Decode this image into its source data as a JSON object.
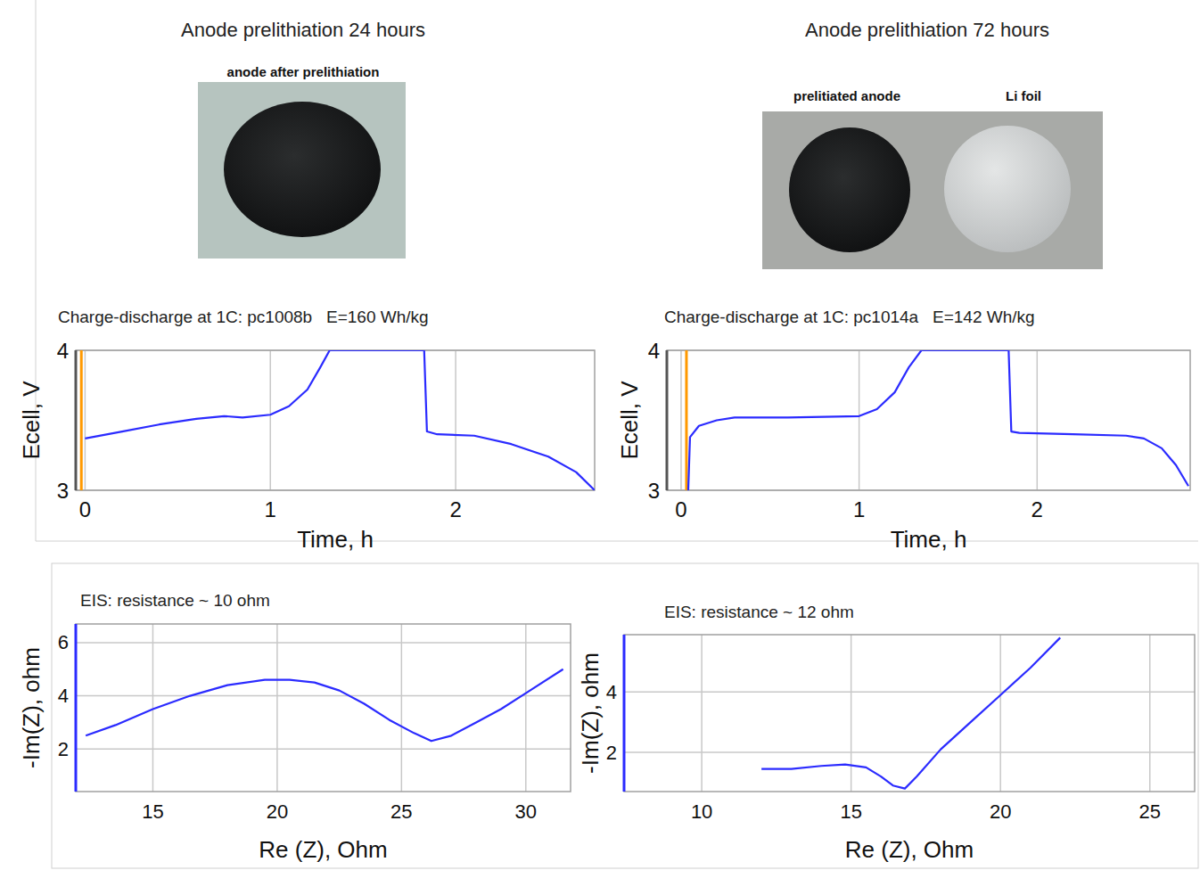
{
  "photos": [
    {
      "title": "Anode prelithiation 24 hours",
      "labels": [
        "anode after prelithiation"
      ]
    },
    {
      "title": "Anode prelithiation 72 hours",
      "labels": [
        "prelitiated anode",
        "Li foil"
      ]
    }
  ],
  "chart_data": [
    {
      "type": "line",
      "title": "Charge-discharge at 1C: pc1008b   E=160 Wh/kg",
      "x_label": "Time, h",
      "y_label": "Ecell, V",
      "x": [
        0,
        0.2,
        0.4,
        0.6,
        0.75,
        0.85,
        1.0,
        1.1,
        1.2,
        1.27,
        1.32,
        1.5,
        1.83,
        1.845,
        1.9,
        2.1,
        2.3,
        2.5,
        2.65,
        2.75
      ],
      "series": [
        {
          "color": "#2b2bff",
          "values": [
            3.37,
            3.42,
            3.47,
            3.51,
            3.53,
            3.52,
            3.54,
            3.6,
            3.72,
            3.88,
            4.0,
            4.0,
            4.0,
            3.42,
            3.4,
            3.39,
            3.33,
            3.24,
            3.13,
            3.0
          ]
        }
      ],
      "marker_line": {
        "x": -0.02,
        "color": "#ff9900"
      },
      "xlim": [
        -0.05,
        2.75
      ],
      "xticks": [
        0,
        1,
        2
      ],
      "ylim": [
        3,
        4
      ],
      "yticks": [
        3,
        4
      ],
      "grid": true
    },
    {
      "type": "line",
      "title": "Charge-discharge at 1C: pc1014a   E=142 Wh/kg",
      "x_label": "Time, h",
      "y_label": "Ecell, V",
      "x": [
        0.04,
        0.05,
        0.1,
        0.2,
        0.3,
        0.6,
        1.0,
        1.1,
        1.2,
        1.28,
        1.35,
        1.6,
        1.84,
        1.855,
        1.9,
        2.2,
        2.5,
        2.6,
        2.7,
        2.78,
        2.85
      ],
      "series": [
        {
          "color": "#2b2bff",
          "values": [
            3.0,
            3.38,
            3.46,
            3.5,
            3.52,
            3.52,
            3.53,
            3.58,
            3.7,
            3.88,
            4.0,
            4.0,
            4.0,
            3.42,
            3.41,
            3.4,
            3.39,
            3.37,
            3.3,
            3.18,
            3.03
          ]
        }
      ],
      "marker_line": {
        "x": 0.03,
        "color": "#ff9900"
      },
      "xlim": [
        -0.08,
        2.86
      ],
      "xticks": [
        0,
        1,
        2
      ],
      "ylim": [
        3,
        4
      ],
      "yticks": [
        3,
        4
      ],
      "grid": true
    },
    {
      "type": "line",
      "title": "EIS: resistance ~ 10 ohm",
      "x_label": "Re (Z), Ohm",
      "y_label": "-Im(Z), ohm",
      "x": [
        12.3,
        13.5,
        15,
        16.5,
        18,
        19.5,
        20.5,
        21.5,
        22.5,
        23.5,
        24.5,
        25.5,
        26.2,
        27,
        28,
        29,
        30,
        31.5
      ],
      "series": [
        {
          "color": "#2b2bff",
          "values": [
            2.5,
            2.9,
            3.5,
            4.0,
            4.4,
            4.6,
            4.6,
            4.5,
            4.2,
            3.7,
            3.1,
            2.6,
            2.3,
            2.5,
            3.0,
            3.5,
            4.1,
            5.0
          ]
        }
      ],
      "xlim": [
        11.9,
        31.8
      ],
      "xticks": [
        15,
        20,
        25,
        30
      ],
      "ylim": [
        0.4,
        6.7
      ],
      "yticks": [
        2,
        4,
        6
      ],
      "grid": true
    },
    {
      "type": "line",
      "title": "EIS: resistance ~ 12 ohm",
      "x_label": "Re (Z), Ohm",
      "y_label": "-Im(Z), ohm",
      "x": [
        12,
        13,
        14,
        14.8,
        15.5,
        16,
        16.4,
        16.8,
        17.2,
        18,
        19,
        20,
        21,
        22
      ],
      "series": [
        {
          "color": "#2b2bff",
          "values": [
            1.45,
            1.45,
            1.55,
            1.6,
            1.5,
            1.2,
            0.9,
            0.8,
            1.2,
            2.1,
            3.0,
            3.9,
            4.8,
            5.8
          ]
        }
      ],
      "xlim": [
        7.4,
        26.5
      ],
      "xticks": [
        10,
        15,
        20,
        25
      ],
      "ylim": [
        0.7,
        5.9
      ],
      "yticks": [
        2,
        4
      ],
      "grid": true
    }
  ]
}
